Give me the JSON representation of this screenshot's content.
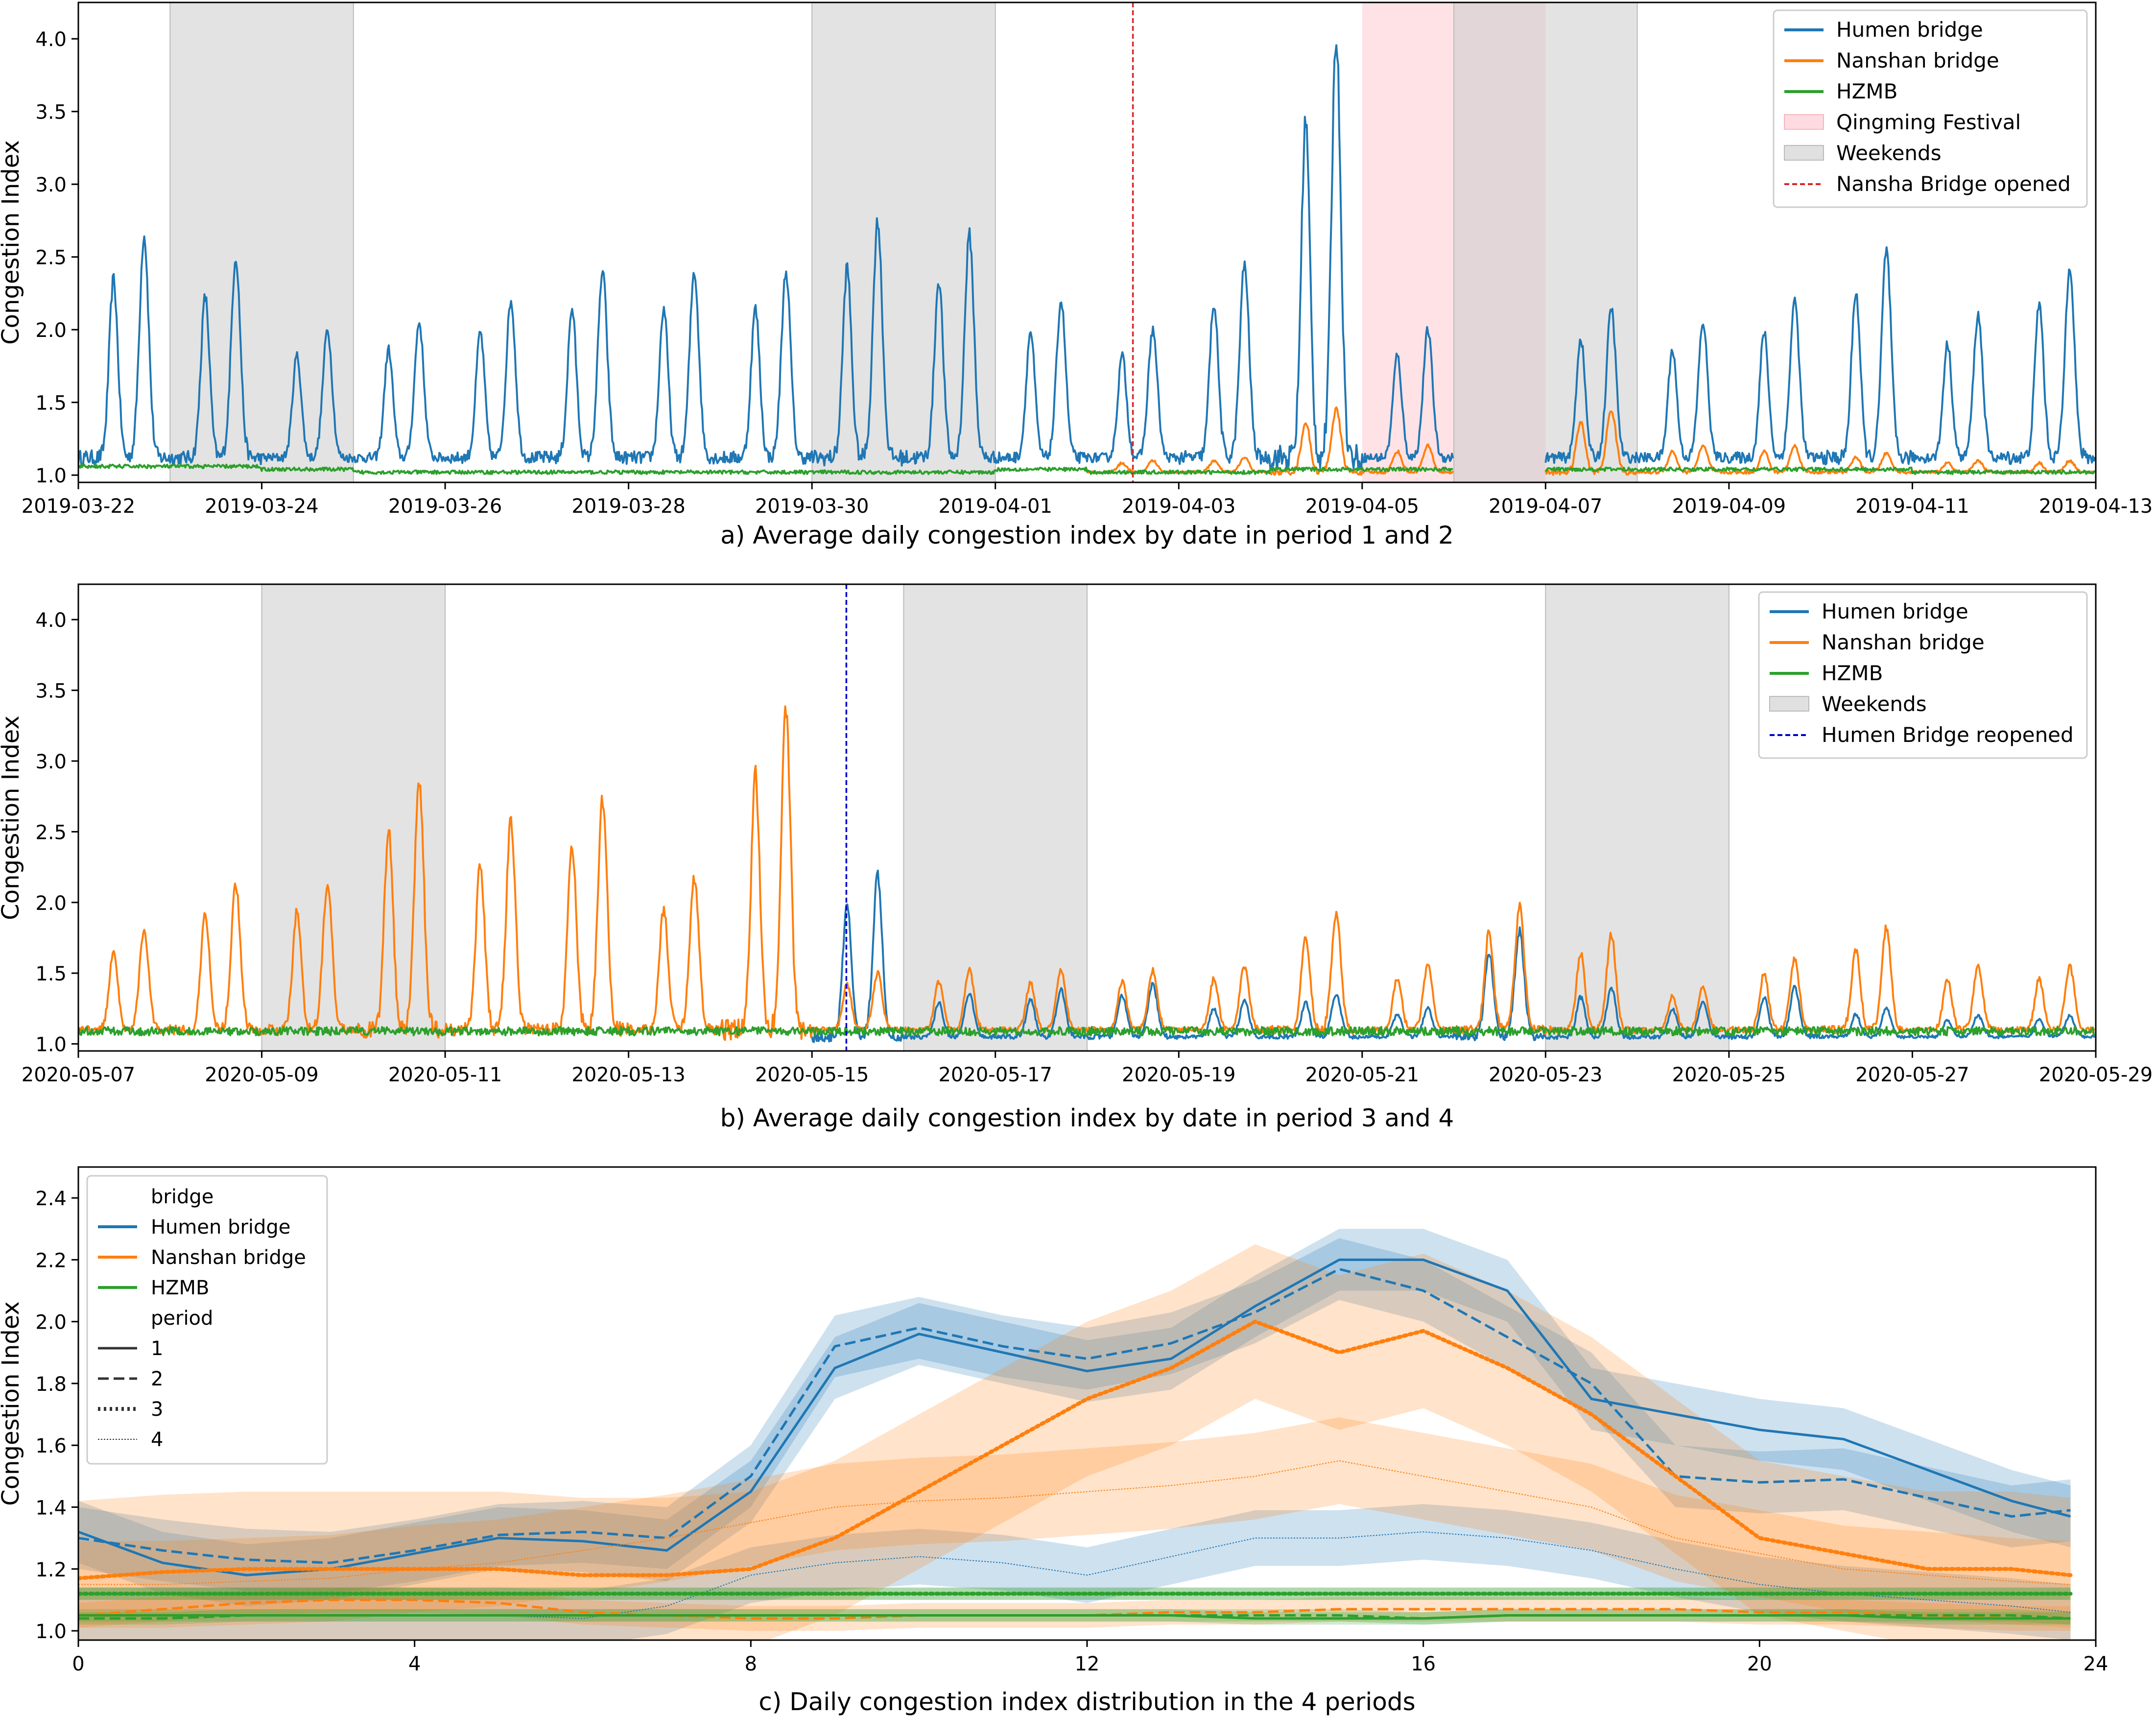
{
  "colors": {
    "humen": "#1f77b4",
    "nanshan": "#ff7f0e",
    "hzmb": "#2ca02c",
    "weekend": "#cccccc",
    "qingming": "#ffb6c1",
    "nansha_line": "#d62728",
    "humen_reopen_line": "#0000cd"
  },
  "chart_data": [
    {
      "id": "a",
      "type": "line",
      "title": "a) Average daily congestion index by date in period 1 and 2",
      "ylabel": "Congestion Index",
      "xlim": [
        "2019-03-22",
        "2019-04-13"
      ],
      "ylim": [
        0.95,
        4.25
      ],
      "yticks": [
        "1.0",
        "1.5",
        "2.0",
        "2.5",
        "3.0",
        "3.5",
        "4.0"
      ],
      "xticks": [
        "2019-03-22",
        "2019-03-24",
        "2019-03-26",
        "2019-03-28",
        "2019-03-30",
        "2019-04-01",
        "2019-04-03",
        "2019-04-05",
        "2019-04-07",
        "2019-04-09",
        "2019-04-11",
        "2019-04-13"
      ],
      "legend": [
        "Humen bridge",
        "Nanshan bridge",
        "HZMB",
        "Qingming Festival",
        "Weekends",
        "Nansha Bridge opened"
      ],
      "legend_position": "top-right",
      "weekends": [
        [
          "2019-03-23",
          "2019-03-25"
        ],
        [
          "2019-03-30",
          "2019-04-01"
        ],
        [
          "2019-04-06",
          "2019-04-08"
        ]
      ],
      "holiday": [
        "2019-04-05",
        "2019-04-07"
      ],
      "event_line": "2019-04-02 12:00",
      "data_gap": [
        "2019-04-06",
        "2019-04-07"
      ],
      "daily_peaks": {
        "dates": [
          "2019-03-22",
          "2019-03-23",
          "2019-03-24",
          "2019-03-25",
          "2019-03-26",
          "2019-03-27",
          "2019-03-28",
          "2019-03-29",
          "2019-03-30",
          "2019-03-31",
          "2019-04-01",
          "2019-04-02",
          "2019-04-03",
          "2019-04-04",
          "2019-04-05",
          "2019-04-06",
          "2019-04-07",
          "2019-04-08",
          "2019-04-09",
          "2019-04-10",
          "2019-04-11",
          "2019-04-12"
        ],
        "humen": [
          2.65,
          2.5,
          2.0,
          2.05,
          2.2,
          2.4,
          2.4,
          2.4,
          2.75,
          2.65,
          2.2,
          2.0,
          2.45,
          4.02,
          2.0,
          null,
          2.15,
          2.05,
          2.2,
          2.55,
          2.1,
          2.45
        ],
        "nanshan": [
          null,
          null,
          null,
          null,
          null,
          null,
          null,
          null,
          null,
          null,
          null,
          1.1,
          1.12,
          1.45,
          1.2,
          null,
          1.45,
          1.2,
          1.2,
          1.15,
          1.1,
          1.1
        ],
        "hzmb": [
          1.12,
          1.12,
          1.1,
          1.08,
          1.08,
          1.08,
          1.08,
          1.08,
          1.08,
          1.08,
          1.1,
          1.08,
          1.08,
          1.1,
          1.1,
          null,
          1.1,
          1.1,
          1.1,
          1.1,
          1.08,
          1.08
        ]
      }
    },
    {
      "id": "b",
      "type": "line",
      "title": "b) Average daily congestion index by date in period 3 and 4",
      "ylabel": "Congestion Index",
      "xlim": [
        "2020-05-07",
        "2020-05-29"
      ],
      "ylim": [
        0.95,
        4.25
      ],
      "yticks": [
        "1.0",
        "1.5",
        "2.0",
        "2.5",
        "3.0",
        "3.5",
        "4.0"
      ],
      "xticks": [
        "2020-05-07",
        "2020-05-09",
        "2020-05-11",
        "2020-05-13",
        "2020-05-15",
        "2020-05-17",
        "2020-05-19",
        "2020-05-21",
        "2020-05-23",
        "2020-05-25",
        "2020-05-27",
        "2020-05-29"
      ],
      "legend": [
        "Humen bridge",
        "Nanshan bridge",
        "HZMB",
        "Weekends",
        "Humen Bridge reopened"
      ],
      "legend_position": "top-right",
      "weekends": [
        [
          "2020-05-09",
          "2020-05-11"
        ],
        [
          "2020-05-16",
          "2020-05-18"
        ],
        [
          "2020-05-23",
          "2020-05-25"
        ]
      ],
      "event_line": "2020-05-15 09:00",
      "daily_peaks": {
        "dates": [
          "2020-05-07",
          "2020-05-08",
          "2020-05-09",
          "2020-05-10",
          "2020-05-11",
          "2020-05-12",
          "2020-05-13",
          "2020-05-14",
          "2020-05-15",
          "2020-05-16",
          "2020-05-17",
          "2020-05-18",
          "2020-05-19",
          "2020-05-20",
          "2020-05-21",
          "2020-05-22",
          "2020-05-23",
          "2020-05-24",
          "2020-05-25",
          "2020-05-26",
          "2020-05-27",
          "2020-05-28"
        ],
        "humen": [
          null,
          null,
          null,
          null,
          null,
          null,
          null,
          null,
          2.2,
          1.35,
          1.38,
          1.42,
          1.3,
          1.35,
          1.25,
          1.8,
          1.4,
          1.3,
          1.4,
          1.25,
          1.2,
          1.2
        ],
        "nanshan": [
          1.8,
          2.12,
          2.14,
          2.88,
          2.57,
          2.73,
          2.17,
          3.36,
          1.5,
          1.52,
          1.52,
          1.52,
          1.55,
          1.92,
          1.55,
          1.97,
          1.77,
          1.4,
          1.6,
          1.82,
          1.55,
          1.55
        ],
        "hzmb": [
          1.15,
          1.15,
          1.15,
          1.15,
          1.15,
          1.15,
          1.15,
          1.15,
          1.15,
          1.15,
          1.15,
          1.15,
          1.15,
          1.15,
          1.15,
          1.15,
          1.15,
          1.15,
          1.15,
          1.15,
          1.15,
          1.15
        ]
      }
    },
    {
      "id": "c",
      "type": "line",
      "title": "c) Daily congestion index distribution in the 4 periods",
      "ylabel": "Congestion Index",
      "xlim": [
        0,
        24
      ],
      "ylim": [
        0.97,
        2.5
      ],
      "xticks": [
        "0",
        "4",
        "8",
        "12",
        "16",
        "20",
        "24"
      ],
      "yticks": [
        "1.0",
        "1.2",
        "1.4",
        "1.6",
        "1.8",
        "2.0",
        "2.2",
        "2.4"
      ],
      "legend_titles": {
        "bridge": "bridge",
        "period": "period"
      },
      "legend_bridges": [
        "Humen bridge",
        "Nanshan bridge",
        "HZMB"
      ],
      "legend_periods": [
        "1",
        "2",
        "3",
        "4"
      ],
      "legend_position": "top-left",
      "x": [
        0,
        1,
        2,
        3,
        4,
        5,
        6,
        7,
        8,
        9,
        10,
        11,
        12,
        13,
        14,
        15,
        16,
        17,
        18,
        19,
        20,
        21,
        22,
        23,
        23.7
      ],
      "series": [
        {
          "bridge": "Humen bridge",
          "period": "1",
          "band": 0.1,
          "values": [
            1.32,
            1.22,
            1.18,
            1.2,
            1.25,
            1.3,
            1.29,
            1.26,
            1.45,
            1.85,
            1.96,
            1.9,
            1.84,
            1.88,
            2.05,
            2.2,
            2.2,
            2.1,
            1.75,
            1.7,
            1.65,
            1.62,
            1.52,
            1.42,
            1.37
          ]
        },
        {
          "bridge": "Humen bridge",
          "period": "2",
          "band": 0.1,
          "values": [
            1.3,
            1.26,
            1.23,
            1.22,
            1.26,
            1.31,
            1.32,
            1.3,
            1.5,
            1.92,
            1.98,
            1.92,
            1.88,
            1.93,
            2.03,
            2.17,
            2.1,
            1.95,
            1.8,
            1.5,
            1.48,
            1.49,
            1.43,
            1.37,
            1.39
          ]
        },
        {
          "bridge": "Humen bridge",
          "period": "4",
          "band": 0.09,
          "values": [
            1.05,
            1.05,
            1.05,
            1.05,
            1.05,
            1.05,
            1.04,
            1.08,
            1.18,
            1.22,
            1.24,
            1.22,
            1.18,
            1.24,
            1.3,
            1.3,
            1.32,
            1.3,
            1.26,
            1.2,
            1.15,
            1.12,
            1.1,
            1.08,
            1.06
          ]
        },
        {
          "bridge": "Nanshan bridge",
          "period": "2",
          "band": 0.04,
          "values": [
            1.05,
            1.07,
            1.09,
            1.1,
            1.1,
            1.09,
            1.06,
            1.05,
            1.04,
            1.04,
            1.05,
            1.05,
            1.05,
            1.06,
            1.06,
            1.07,
            1.07,
            1.07,
            1.07,
            1.07,
            1.06,
            1.06,
            1.05,
            1.04,
            1.04
          ]
        },
        {
          "bridge": "Nanshan bridge",
          "period": "3",
          "band": 0.25,
          "values": [
            1.17,
            1.19,
            1.2,
            1.2,
            1.2,
            1.2,
            1.18,
            1.18,
            1.2,
            1.3,
            1.45,
            1.6,
            1.75,
            1.85,
            2.0,
            1.9,
            1.97,
            1.85,
            1.7,
            1.5,
            1.3,
            1.25,
            1.2,
            1.2,
            1.18
          ]
        },
        {
          "bridge": "Nanshan bridge",
          "period": "4",
          "band": 0.14,
          "values": [
            1.15,
            1.15,
            1.16,
            1.17,
            1.2,
            1.22,
            1.26,
            1.3,
            1.35,
            1.4,
            1.42,
            1.43,
            1.45,
            1.47,
            1.5,
            1.55,
            1.5,
            1.45,
            1.4,
            1.3,
            1.25,
            1.2,
            1.18,
            1.16,
            1.15
          ]
        },
        {
          "bridge": "HZMB",
          "period": "1",
          "band": 0.02,
          "values": [
            1.05,
            1.05,
            1.05,
            1.05,
            1.05,
            1.05,
            1.05,
            1.05,
            1.05,
            1.05,
            1.05,
            1.05,
            1.05,
            1.05,
            1.04,
            1.04,
            1.04,
            1.05,
            1.05,
            1.05,
            1.05,
            1.05,
            1.04,
            1.04,
            1.04
          ]
        },
        {
          "bridge": "HZMB",
          "period": "2",
          "band": 0.02,
          "values": [
            1.04,
            1.04,
            1.05,
            1.05,
            1.05,
            1.05,
            1.05,
            1.05,
            1.05,
            1.05,
            1.05,
            1.05,
            1.05,
            1.05,
            1.05,
            1.05,
            1.04,
            1.05,
            1.05,
            1.05,
            1.05,
            1.05,
            1.05,
            1.05,
            1.04
          ]
        },
        {
          "bridge": "HZMB",
          "period": "3",
          "band": 0.02,
          "values": [
            1.12,
            1.12,
            1.12,
            1.12,
            1.12,
            1.12,
            1.12,
            1.12,
            1.12,
            1.12,
            1.12,
            1.12,
            1.12,
            1.12,
            1.12,
            1.12,
            1.12,
            1.12,
            1.12,
            1.12,
            1.12,
            1.12,
            1.12,
            1.12,
            1.12
          ]
        },
        {
          "bridge": "HZMB",
          "period": "4",
          "band": 0.02,
          "values": [
            1.12,
            1.12,
            1.12,
            1.12,
            1.12,
            1.12,
            1.12,
            1.12,
            1.12,
            1.12,
            1.12,
            1.12,
            1.12,
            1.12,
            1.12,
            1.12,
            1.12,
            1.12,
            1.12,
            1.12,
            1.12,
            1.12,
            1.12,
            1.12,
            1.12
          ]
        }
      ]
    }
  ]
}
